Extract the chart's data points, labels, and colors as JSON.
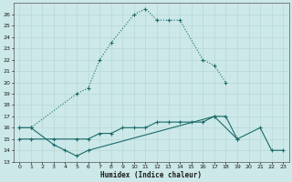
{
  "xlabel": "Humidex (Indice chaleur)",
  "bg_color": "#cce8e8",
  "line_color": "#1a6b6b",
  "grid_color": "#b8d8d8",
  "series1_x": [
    0,
    1,
    5,
    6,
    7,
    8,
    10,
    11,
    12,
    13,
    14,
    16,
    17,
    18
  ],
  "series1_y": [
    16.0,
    16.0,
    19.0,
    19.5,
    22.0,
    23.5,
    26.0,
    26.5,
    25.5,
    25.5,
    25.5,
    22.0,
    21.5,
    20.0
  ],
  "series2_x": [
    0,
    1,
    3,
    4,
    5,
    6,
    17,
    18,
    19,
    21,
    22,
    23
  ],
  "series2_y": [
    16.0,
    16.0,
    14.5,
    14.0,
    13.5,
    14.0,
    17.0,
    17.0,
    15.0,
    16.0,
    14.0,
    14.0
  ],
  "series3_x": [
    0,
    1,
    3,
    5,
    6,
    7,
    8,
    9,
    10,
    11,
    12,
    13,
    14,
    15,
    16,
    17,
    19
  ],
  "series3_y": [
    15.0,
    15.0,
    15.0,
    15.0,
    15.0,
    15.5,
    15.5,
    16.0,
    16.0,
    16.0,
    16.5,
    16.5,
    16.5,
    16.5,
    16.5,
    17.0,
    15.0
  ],
  "ylim": [
    13,
    27
  ],
  "xlim": [
    -0.5,
    23.5
  ],
  "yticks": [
    13,
    14,
    15,
    16,
    17,
    18,
    19,
    20,
    21,
    22,
    23,
    24,
    25,
    26
  ],
  "xticks": [
    0,
    1,
    2,
    3,
    4,
    5,
    6,
    7,
    8,
    9,
    10,
    11,
    12,
    13,
    14,
    15,
    16,
    17,
    18,
    19,
    20,
    21,
    22,
    23
  ]
}
